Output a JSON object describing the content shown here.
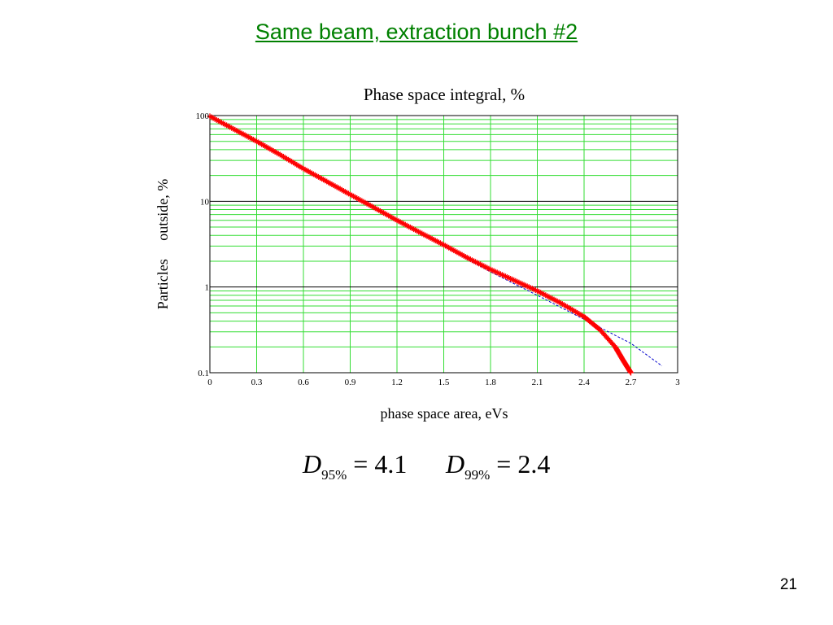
{
  "slide": {
    "title": "Same beam, extraction bunch #2",
    "page_number": "21"
  },
  "equations": [
    {
      "symbol": "D",
      "subscript": "95%",
      "operator": "=",
      "value": "4.1"
    },
    {
      "symbol": "D",
      "subscript": "99%",
      "operator": "=",
      "value": "2.4"
    }
  ],
  "chart_data": {
    "type": "line",
    "title": "Phase space integral, %",
    "xlabel": "phase space area, eVs",
    "ylabel": "Particles     outside, %",
    "xlim": [
      0,
      3
    ],
    "ylim": [
      0.1,
      100
    ],
    "y_scale": "log",
    "x_ticks": [
      "0",
      "0.3",
      "0.6",
      "0.9",
      "1.2",
      "1.5",
      "1.8",
      "2.1",
      "2.4",
      "2.7",
      "3"
    ],
    "y_ticks": [
      "0.1",
      "1",
      "10",
      "100"
    ],
    "grid": true,
    "colors": {
      "grid_minor": "#33dd33",
      "grid_major": "#000000",
      "measured": "#ff0000",
      "fit": "#0000cc"
    },
    "series": [
      {
        "style": "red plus markers",
        "x": [
          0,
          0.15,
          0.3,
          0.45,
          0.6,
          0.75,
          0.9,
          1.05,
          1.2,
          1.35,
          1.5,
          1.65,
          1.8,
          1.95,
          2.1,
          2.25,
          2.4,
          2.5,
          2.6,
          2.65,
          2.7
        ],
        "values": [
          98,
          70,
          50,
          35,
          24,
          17,
          12,
          8.5,
          6,
          4.3,
          3.1,
          2.2,
          1.6,
          1.2,
          0.9,
          0.65,
          0.45,
          0.32,
          0.2,
          0.14,
          0.1
        ]
      },
      {
        "style": "blue dashed line",
        "x": [
          0,
          0.3,
          0.6,
          0.9,
          1.2,
          1.5,
          1.8,
          2.1,
          2.4,
          2.7,
          2.9
        ],
        "values": [
          98,
          50,
          24,
          12,
          6,
          3,
          1.5,
          0.8,
          0.42,
          0.22,
          0.12
        ]
      }
    ]
  }
}
